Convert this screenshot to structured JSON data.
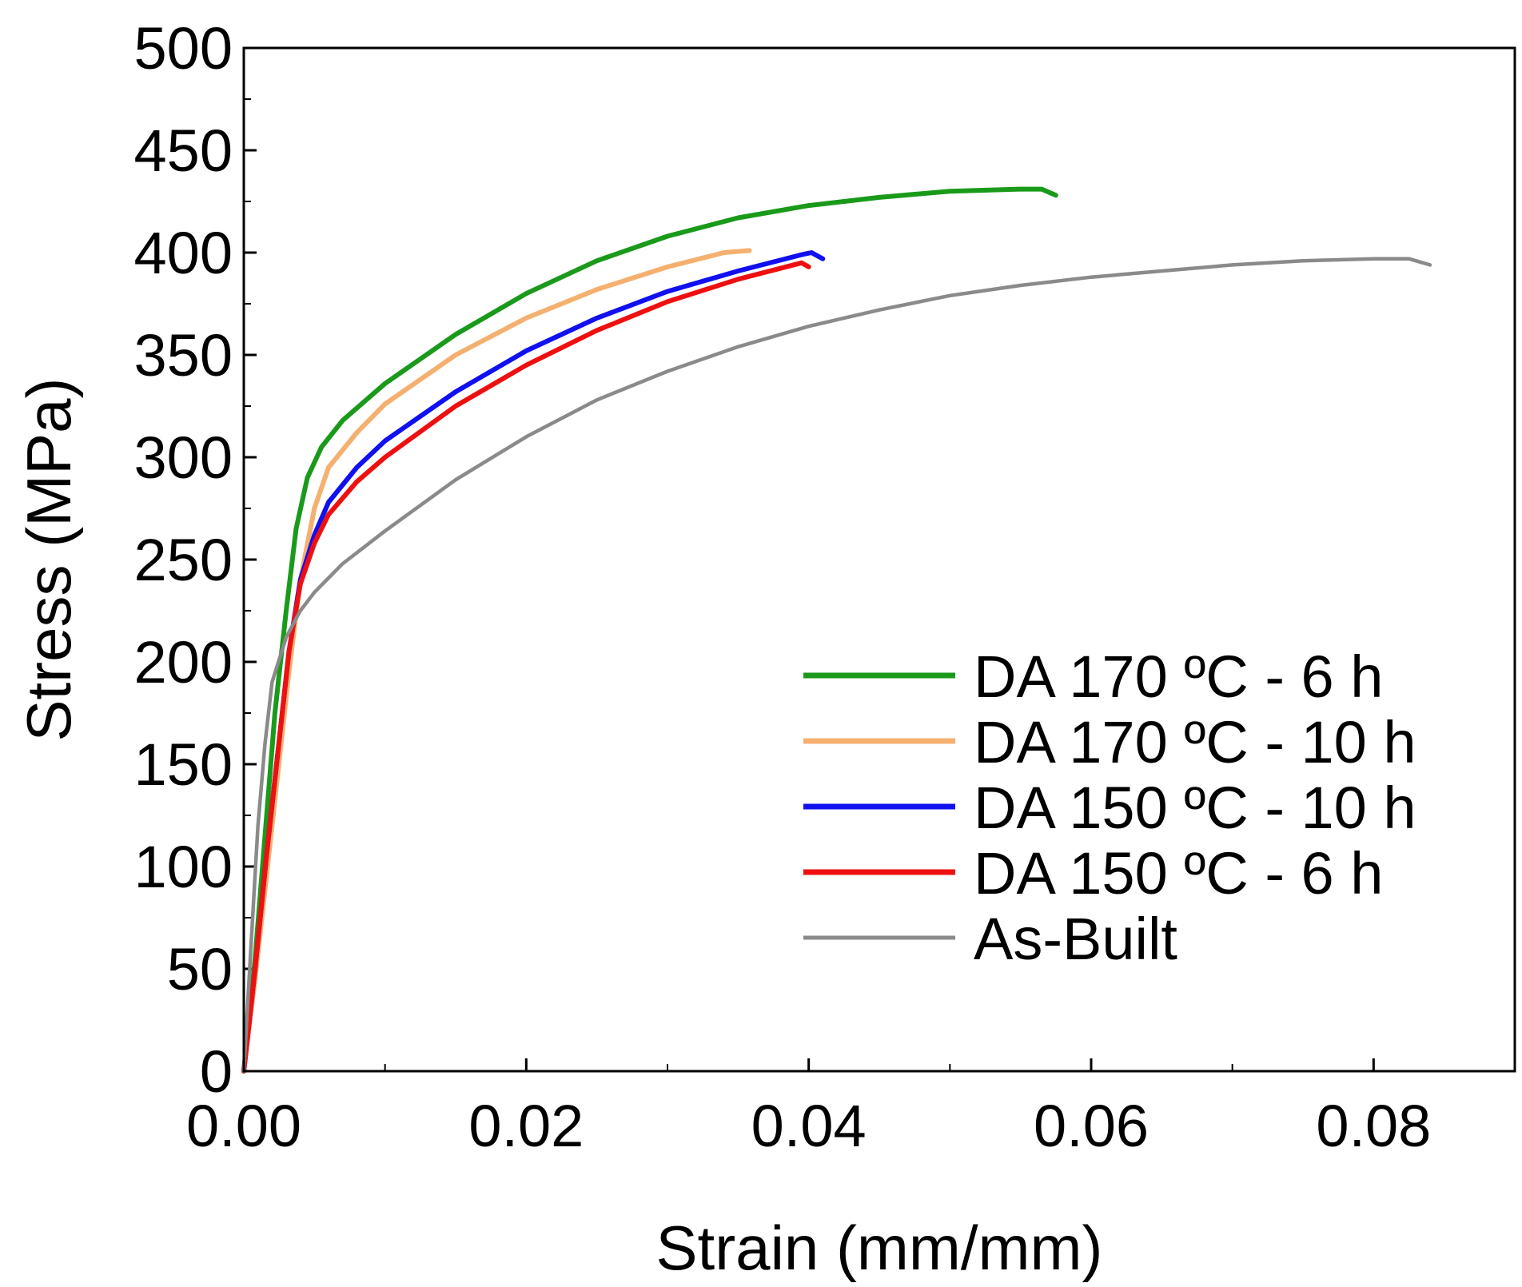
{
  "chart_data": {
    "type": "line",
    "title": "",
    "xlabel": "Strain (mm/mm)",
    "ylabel": "Stress (MPa)",
    "xlim": [
      0,
      0.09
    ],
    "ylim": [
      0,
      500
    ],
    "xticks": [
      0.0,
      0.02,
      0.04,
      0.06,
      0.08
    ],
    "xtick_labels": [
      "0.00",
      "0.02",
      "0.04",
      "0.06",
      "0.08"
    ],
    "yticks": [
      0,
      50,
      100,
      150,
      200,
      250,
      300,
      350,
      400,
      450,
      500
    ],
    "ytick_labels": [
      "0",
      "50",
      "100",
      "150",
      "200",
      "250",
      "300",
      "350",
      "400",
      "450",
      "500"
    ],
    "grid": false,
    "legend_position": "bottom-right",
    "series": [
      {
        "name": "DA 170 ºC - 6 h",
        "color": "#1a9a1a",
        "points": [
          [
            0,
            0
          ],
          [
            0.0008,
            55
          ],
          [
            0.0015,
            115
          ],
          [
            0.0022,
            175
          ],
          [
            0.003,
            225
          ],
          [
            0.0037,
            265
          ],
          [
            0.0045,
            290
          ],
          [
            0.0055,
            305
          ],
          [
            0.007,
            318
          ],
          [
            0.01,
            336
          ],
          [
            0.015,
            360
          ],
          [
            0.02,
            380
          ],
          [
            0.025,
            396
          ],
          [
            0.03,
            408
          ],
          [
            0.035,
            417
          ],
          [
            0.04,
            423
          ],
          [
            0.045,
            427
          ],
          [
            0.05,
            430
          ],
          [
            0.055,
            431
          ],
          [
            0.0565,
            431
          ],
          [
            0.0575,
            428
          ]
        ]
      },
      {
        "name": "DA 170 ºC - 10 h",
        "color": "#f5b070",
        "points": [
          [
            0,
            0
          ],
          [
            0.0008,
            45
          ],
          [
            0.0016,
            95
          ],
          [
            0.0024,
            145
          ],
          [
            0.0032,
            195
          ],
          [
            0.004,
            240
          ],
          [
            0.005,
            275
          ],
          [
            0.006,
            295
          ],
          [
            0.008,
            312
          ],
          [
            0.01,
            326
          ],
          [
            0.015,
            350
          ],
          [
            0.02,
            368
          ],
          [
            0.025,
            382
          ],
          [
            0.03,
            393
          ],
          [
            0.034,
            400
          ],
          [
            0.0358,
            401
          ]
        ]
      },
      {
        "name": "DA 150 ºC - 10 h",
        "color": "#1010f0",
        "points": [
          [
            0,
            0
          ],
          [
            0.0008,
            50
          ],
          [
            0.0016,
            105
          ],
          [
            0.0024,
            155
          ],
          [
            0.0032,
            205
          ],
          [
            0.004,
            240
          ],
          [
            0.005,
            262
          ],
          [
            0.006,
            278
          ],
          [
            0.008,
            295
          ],
          [
            0.01,
            308
          ],
          [
            0.015,
            332
          ],
          [
            0.02,
            352
          ],
          [
            0.025,
            368
          ],
          [
            0.03,
            381
          ],
          [
            0.035,
            391
          ],
          [
            0.0395,
            399
          ],
          [
            0.0402,
            400
          ],
          [
            0.041,
            397
          ]
        ]
      },
      {
        "name": "DA 150 ºC - 6 h",
        "color": "#ee1010",
        "points": [
          [
            0,
            0
          ],
          [
            0.0008,
            50
          ],
          [
            0.0016,
            105
          ],
          [
            0.0024,
            155
          ],
          [
            0.0032,
            205
          ],
          [
            0.004,
            238
          ],
          [
            0.005,
            258
          ],
          [
            0.006,
            272
          ],
          [
            0.008,
            288
          ],
          [
            0.01,
            300
          ],
          [
            0.015,
            325
          ],
          [
            0.02,
            345
          ],
          [
            0.025,
            362
          ],
          [
            0.03,
            376
          ],
          [
            0.035,
            387
          ],
          [
            0.0395,
            395
          ],
          [
            0.04,
            393
          ]
        ]
      },
      {
        "name": "As-Built",
        "color": "#8a8a8a",
        "points": [
          [
            0,
            0
          ],
          [
            0.0005,
            60
          ],
          [
            0.001,
            120
          ],
          [
            0.0015,
            160
          ],
          [
            0.002,
            190
          ],
          [
            0.003,
            212
          ],
          [
            0.004,
            225
          ],
          [
            0.005,
            234
          ],
          [
            0.007,
            248
          ],
          [
            0.01,
            264
          ],
          [
            0.015,
            289
          ],
          [
            0.02,
            310
          ],
          [
            0.025,
            328
          ],
          [
            0.03,
            342
          ],
          [
            0.035,
            354
          ],
          [
            0.04,
            364
          ],
          [
            0.045,
            372
          ],
          [
            0.05,
            379
          ],
          [
            0.055,
            384
          ],
          [
            0.06,
            388
          ],
          [
            0.065,
            391
          ],
          [
            0.07,
            394
          ],
          [
            0.075,
            396
          ],
          [
            0.08,
            397
          ],
          [
            0.0825,
            397
          ],
          [
            0.084,
            394
          ]
        ]
      }
    ]
  }
}
